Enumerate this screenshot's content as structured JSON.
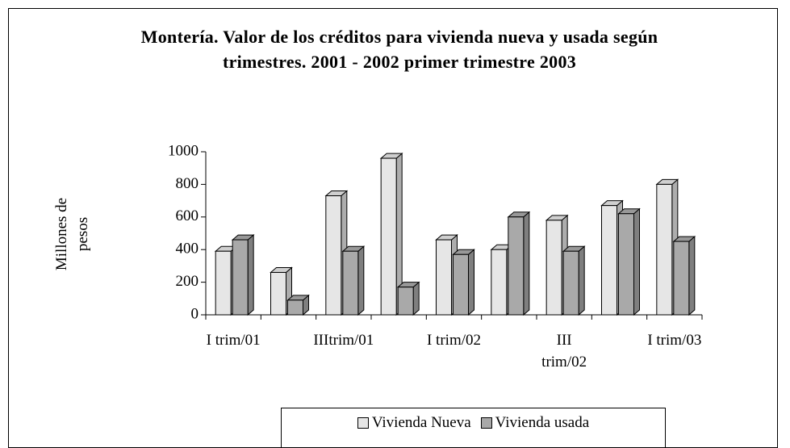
{
  "chart_data": {
    "type": "bar3d",
    "title": "Montería. Valor de los créditos para vivienda nueva y usada según trimestres. 2001 - 2002 primer trimestre 2003",
    "y_label": "Millones de pesos",
    "categories": [
      "I trim/01",
      null,
      "IIItrim/01",
      null,
      "I trim/02",
      null,
      "III trim/02",
      null,
      "I trim/03"
    ],
    "series": [
      {
        "name": "Vivienda Nueva",
        "color": "#e6e6e6",
        "values": [
          390,
          260,
          730,
          960,
          460,
          400,
          580,
          670,
          800
        ]
      },
      {
        "name": "Vivienda usada",
        "color": "#a9a9a9",
        "values": [
          460,
          90,
          390,
          170,
          370,
          600,
          390,
          620,
          450
        ]
      }
    ],
    "ylim": [
      0,
      1000
    ],
    "yticks": [
      0,
      200,
      400,
      600,
      800,
      1000
    ],
    "grid": false,
    "legend": "bottom"
  }
}
